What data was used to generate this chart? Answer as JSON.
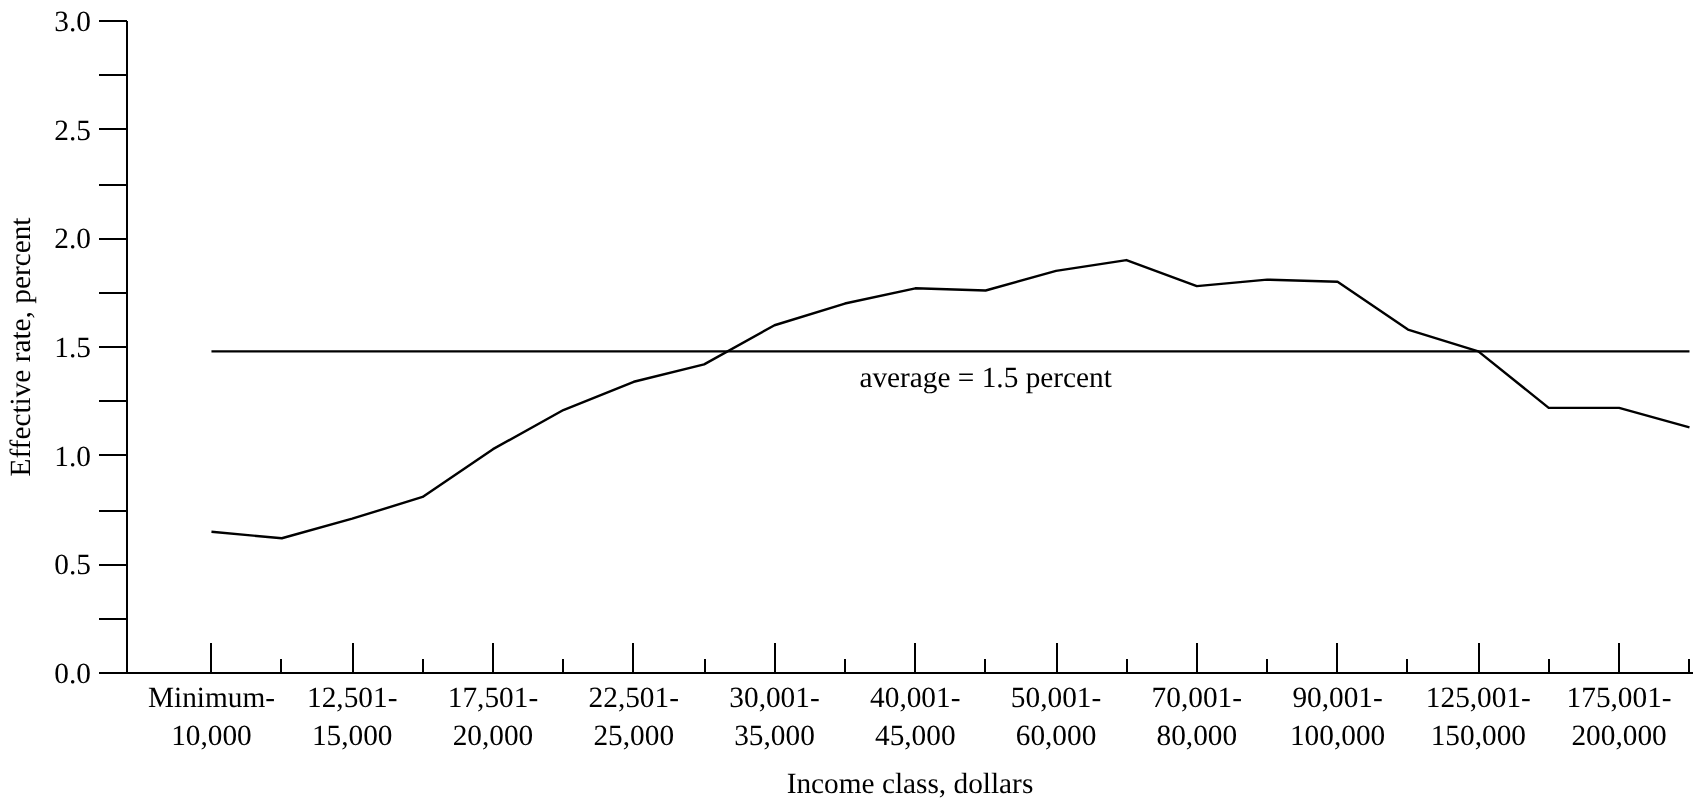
{
  "chart_data": {
    "type": "line",
    "xlabel": "Income class, dollars",
    "ylabel": "Effective rate, percent",
    "categories": [
      "Minimum-\n10,000",
      null,
      "12,501-\n15,000",
      null,
      "17,501-\n20,000",
      null,
      "22,501-\n25,000",
      null,
      "30,001-\n35,000",
      null,
      "40,001-\n45,000",
      null,
      "50,001-\n60,000",
      null,
      "70,001-\n80,000",
      null,
      "90,001-\n100,000",
      null,
      "125,001-\n150,000",
      null,
      "175,001-\n200,000",
      null
    ],
    "series": [
      {
        "color": "#000000",
        "values": [
          0.65,
          0.62,
          0.71,
          0.81,
          1.03,
          1.21,
          1.34,
          1.42,
          1.6,
          1.7,
          1.77,
          1.76,
          1.85,
          1.9,
          1.78,
          1.81,
          1.8,
          1.58,
          1.48,
          1.22,
          1.22,
          1.13
        ]
      }
    ],
    "ylim": [
      0,
      3
    ],
    "yticks": [
      {
        "value": 0,
        "label": "0.0"
      },
      {
        "value": 0.5,
        "label": "0.5"
      },
      {
        "value": 1,
        "label": "1.0"
      },
      {
        "value": 1.5,
        "label": "1.5"
      },
      {
        "value": 2,
        "label": "2.0"
      },
      {
        "value": 2.5,
        "label": "2.5"
      },
      {
        "value": 3,
        "label": "3.0"
      }
    ],
    "ref_lines": [
      {
        "axis": "y",
        "value": 1.48,
        "label": "average = 1.5 percent",
        "color": "#000000"
      }
    ],
    "grid": false,
    "marker": "none",
    "line_style": "solid"
  }
}
